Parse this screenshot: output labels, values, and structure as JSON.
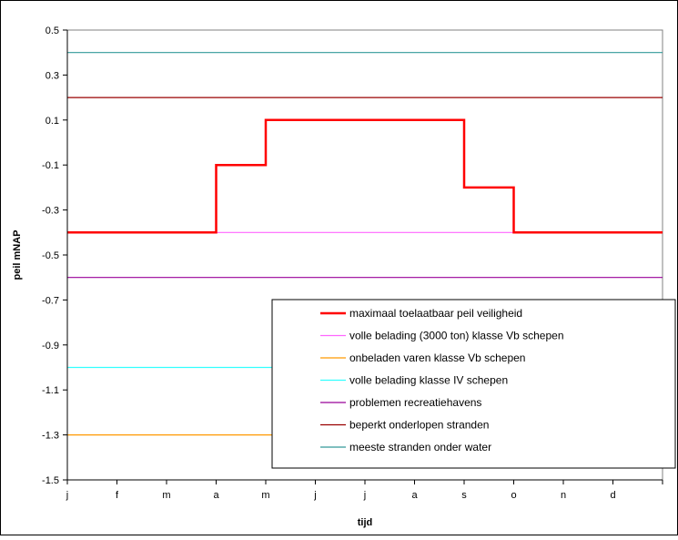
{
  "chart_data": {
    "type": "line",
    "title": "",
    "xlabel": "tijd",
    "ylabel": "peil mNAP",
    "ylim": [
      -1.5,
      0.5
    ],
    "ytick_step": 0.2,
    "yticks": [
      "0.5",
      "0.3",
      "0.1",
      "-0.1",
      "-0.3",
      "-0.5",
      "-0.7",
      "-0.9",
      "-1.1",
      "-1.3",
      "-1.5"
    ],
    "categories": [
      "j",
      "f",
      "m",
      "a",
      "m",
      "j",
      "j",
      "a",
      "s",
      "o",
      "n",
      "d"
    ],
    "grid": false,
    "legend_position": "bottom-right",
    "series": [
      {
        "name": "maximaal toelaatbaar peil veiligheid",
        "color": "#ff0000",
        "style": "step",
        "points": [
          {
            "x": "j",
            "y": -0.4
          },
          {
            "x": "a",
            "y": -0.4
          },
          {
            "x": "a",
            "y": -0.1
          },
          {
            "x": "m",
            "y": -0.1
          },
          {
            "x": "m",
            "y": 0.1
          },
          {
            "x": "s",
            "y": 0.1
          },
          {
            "x": "s",
            "y": -0.2
          },
          {
            "x": "o",
            "y": -0.2
          },
          {
            "x": "o",
            "y": -0.4
          },
          {
            "x": "end",
            "y": -0.4
          }
        ]
      },
      {
        "name": "volle belading (3000 ton) klasse Vb schepen",
        "color": "#ff66ff",
        "style": "constant",
        "y": -0.4,
        "from": "j",
        "to": "end"
      },
      {
        "name": "onbeladen varen klasse Vb schepen",
        "color": "#ff9900",
        "style": "constant",
        "y": -1.3,
        "from": "j",
        "to": "partial"
      },
      {
        "name": "volle belading klasse IV schepen",
        "color": "#33ffff",
        "style": "constant",
        "y": -1.0,
        "from": "j",
        "to": "partial"
      },
      {
        "name": "problemen recreatiehavens",
        "color": "#990099",
        "style": "constant",
        "y": -0.6,
        "from": "j",
        "to": "end"
      },
      {
        "name": "beperkt onderlopen stranden",
        "color": "#990000",
        "style": "constant",
        "y": 0.2,
        "from": "j",
        "to": "end"
      },
      {
        "name": "meeste stranden onder water",
        "color": "#339999",
        "style": "constant",
        "y": 0.4,
        "from": "j",
        "to": "end"
      }
    ]
  }
}
